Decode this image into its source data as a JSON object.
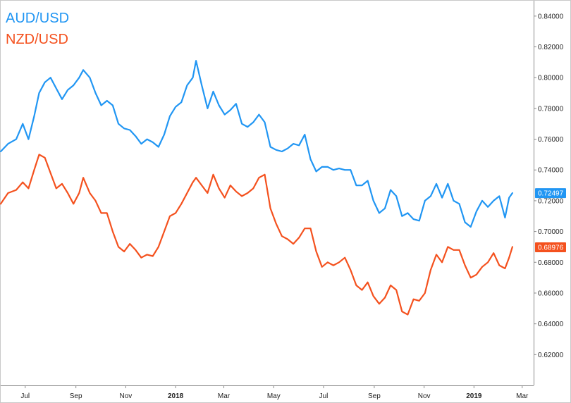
{
  "chart_data": {
    "type": "line",
    "x_range": [
      "2017-06-01",
      "2019-03-15"
    ],
    "ylim": [
      0.6,
      0.85
    ],
    "grid": false,
    "legend_position": "top-left",
    "y_ticks": [
      "0.62000",
      "0.64000",
      "0.66000",
      "0.68000",
      "0.70000",
      "0.72000",
      "0.74000",
      "0.76000",
      "0.78000",
      "0.80000",
      "0.82000",
      "0.84000"
    ],
    "x_ticks": [
      {
        "date": "2017-07-01",
        "label": "Jul",
        "bold": false
      },
      {
        "date": "2017-09-01",
        "label": "Sep",
        "bold": false
      },
      {
        "date": "2017-11-01",
        "label": "Nov",
        "bold": false
      },
      {
        "date": "2018-01-01",
        "label": "2018",
        "bold": true
      },
      {
        "date": "2018-03-01",
        "label": "Mar",
        "bold": false
      },
      {
        "date": "2018-05-01",
        "label": "May",
        "bold": false
      },
      {
        "date": "2018-07-01",
        "label": "Jul",
        "bold": false
      },
      {
        "date": "2018-09-01",
        "label": "Sep",
        "bold": false
      },
      {
        "date": "2018-11-01",
        "label": "Nov",
        "bold": false
      },
      {
        "date": "2019-01-01",
        "label": "2019",
        "bold": true
      },
      {
        "date": "2019-03-01",
        "label": "Mar",
        "bold": false
      }
    ],
    "series": [
      {
        "name": "AUD/USD",
        "color": "#2196f3",
        "last_value": "0.72497",
        "points": [
          [
            "2017-06-01",
            0.752
          ],
          [
            "2017-06-10",
            0.757
          ],
          [
            "2017-06-20",
            0.76
          ],
          [
            "2017-06-28",
            0.77
          ],
          [
            "2017-07-05",
            0.76
          ],
          [
            "2017-07-12",
            0.775
          ],
          [
            "2017-07-18",
            0.79
          ],
          [
            "2017-07-25",
            0.797
          ],
          [
            "2017-08-01",
            0.8
          ],
          [
            "2017-08-08",
            0.793
          ],
          [
            "2017-08-15",
            0.786
          ],
          [
            "2017-08-22",
            0.792
          ],
          [
            "2017-08-29",
            0.795
          ],
          [
            "2017-09-05",
            0.8
          ],
          [
            "2017-09-10",
            0.805
          ],
          [
            "2017-09-18",
            0.8
          ],
          [
            "2017-09-25",
            0.79
          ],
          [
            "2017-10-02",
            0.782
          ],
          [
            "2017-10-09",
            0.785
          ],
          [
            "2017-10-16",
            0.782
          ],
          [
            "2017-10-23",
            0.77
          ],
          [
            "2017-10-30",
            0.767
          ],
          [
            "2017-11-06",
            0.766
          ],
          [
            "2017-11-13",
            0.762
          ],
          [
            "2017-11-20",
            0.757
          ],
          [
            "2017-11-27",
            0.76
          ],
          [
            "2017-12-04",
            0.758
          ],
          [
            "2017-12-11",
            0.755
          ],
          [
            "2017-12-18",
            0.763
          ],
          [
            "2017-12-25",
            0.775
          ],
          [
            "2018-01-01",
            0.781
          ],
          [
            "2018-01-08",
            0.784
          ],
          [
            "2018-01-15",
            0.795
          ],
          [
            "2018-01-22",
            0.8
          ],
          [
            "2018-01-26",
            0.811
          ],
          [
            "2018-02-02",
            0.795
          ],
          [
            "2018-02-09",
            0.78
          ],
          [
            "2018-02-16",
            0.791
          ],
          [
            "2018-02-23",
            0.782
          ],
          [
            "2018-03-02",
            0.776
          ],
          [
            "2018-03-09",
            0.779
          ],
          [
            "2018-03-16",
            0.783
          ],
          [
            "2018-03-23",
            0.77
          ],
          [
            "2018-03-30",
            0.768
          ],
          [
            "2018-04-06",
            0.771
          ],
          [
            "2018-04-13",
            0.776
          ],
          [
            "2018-04-20",
            0.771
          ],
          [
            "2018-04-27",
            0.755
          ],
          [
            "2018-05-04",
            0.753
          ],
          [
            "2018-05-11",
            0.752
          ],
          [
            "2018-05-18",
            0.754
          ],
          [
            "2018-05-25",
            0.757
          ],
          [
            "2018-06-01",
            0.756
          ],
          [
            "2018-06-08",
            0.763
          ],
          [
            "2018-06-15",
            0.747
          ],
          [
            "2018-06-22",
            0.739
          ],
          [
            "2018-06-29",
            0.742
          ],
          [
            "2018-07-06",
            0.742
          ],
          [
            "2018-07-13",
            0.74
          ],
          [
            "2018-07-20",
            0.741
          ],
          [
            "2018-07-27",
            0.74
          ],
          [
            "2018-08-03",
            0.74
          ],
          [
            "2018-08-10",
            0.73
          ],
          [
            "2018-08-17",
            0.73
          ],
          [
            "2018-08-24",
            0.733
          ],
          [
            "2018-08-31",
            0.72
          ],
          [
            "2018-09-07",
            0.712
          ],
          [
            "2018-09-14",
            0.715
          ],
          [
            "2018-09-21",
            0.727
          ],
          [
            "2018-09-28",
            0.723
          ],
          [
            "2018-10-05",
            0.71
          ],
          [
            "2018-10-12",
            0.712
          ],
          [
            "2018-10-19",
            0.708
          ],
          [
            "2018-10-26",
            0.707
          ],
          [
            "2018-11-02",
            0.72
          ],
          [
            "2018-11-09",
            0.723
          ],
          [
            "2018-11-16",
            0.731
          ],
          [
            "2018-11-23",
            0.722
          ],
          [
            "2018-11-30",
            0.731
          ],
          [
            "2018-12-07",
            0.72
          ],
          [
            "2018-12-14",
            0.718
          ],
          [
            "2018-12-21",
            0.706
          ],
          [
            "2018-12-28",
            0.703
          ],
          [
            "2019-01-04",
            0.713
          ],
          [
            "2019-01-11",
            0.72
          ],
          [
            "2019-01-18",
            0.716
          ],
          [
            "2019-01-25",
            0.72
          ],
          [
            "2019-02-01",
            0.723
          ],
          [
            "2019-02-08",
            0.709
          ],
          [
            "2019-02-13",
            0.722
          ],
          [
            "2019-02-17",
            0.725
          ]
        ]
      },
      {
        "name": "NZD/USD",
        "color": "#f4511e",
        "last_value": "0.68976",
        "points": [
          [
            "2017-06-01",
            0.718
          ],
          [
            "2017-06-10",
            0.725
          ],
          [
            "2017-06-20",
            0.727
          ],
          [
            "2017-06-28",
            0.732
          ],
          [
            "2017-07-05",
            0.728
          ],
          [
            "2017-07-12",
            0.74
          ],
          [
            "2017-07-18",
            0.75
          ],
          [
            "2017-07-25",
            0.748
          ],
          [
            "2017-08-01",
            0.738
          ],
          [
            "2017-08-08",
            0.728
          ],
          [
            "2017-08-15",
            0.731
          ],
          [
            "2017-08-22",
            0.725
          ],
          [
            "2017-08-29",
            0.718
          ],
          [
            "2017-09-05",
            0.725
          ],
          [
            "2017-09-10",
            0.735
          ],
          [
            "2017-09-18",
            0.725
          ],
          [
            "2017-09-25",
            0.72
          ],
          [
            "2017-10-02",
            0.712
          ],
          [
            "2017-10-09",
            0.712
          ],
          [
            "2017-10-16",
            0.7
          ],
          [
            "2017-10-23",
            0.69
          ],
          [
            "2017-10-30",
            0.687
          ],
          [
            "2017-11-06",
            0.692
          ],
          [
            "2017-11-13",
            0.688
          ],
          [
            "2017-11-20",
            0.683
          ],
          [
            "2017-11-27",
            0.685
          ],
          [
            "2017-12-04",
            0.684
          ],
          [
            "2017-12-11",
            0.69
          ],
          [
            "2017-12-18",
            0.7
          ],
          [
            "2017-12-25",
            0.71
          ],
          [
            "2018-01-01",
            0.712
          ],
          [
            "2018-01-08",
            0.718
          ],
          [
            "2018-01-15",
            0.725
          ],
          [
            "2018-01-22",
            0.732
          ],
          [
            "2018-01-26",
            0.735
          ],
          [
            "2018-02-02",
            0.73
          ],
          [
            "2018-02-09",
            0.725
          ],
          [
            "2018-02-16",
            0.737
          ],
          [
            "2018-02-23",
            0.728
          ],
          [
            "2018-03-02",
            0.722
          ],
          [
            "2018-03-09",
            0.73
          ],
          [
            "2018-03-16",
            0.726
          ],
          [
            "2018-03-23",
            0.723
          ],
          [
            "2018-03-30",
            0.725
          ],
          [
            "2018-04-06",
            0.728
          ],
          [
            "2018-04-13",
            0.735
          ],
          [
            "2018-04-20",
            0.737
          ],
          [
            "2018-04-27",
            0.715
          ],
          [
            "2018-05-04",
            0.705
          ],
          [
            "2018-05-11",
            0.697
          ],
          [
            "2018-05-18",
            0.695
          ],
          [
            "2018-05-25",
            0.692
          ],
          [
            "2018-06-01",
            0.696
          ],
          [
            "2018-06-08",
            0.702
          ],
          [
            "2018-06-15",
            0.702
          ],
          [
            "2018-06-22",
            0.687
          ],
          [
            "2018-06-29",
            0.677
          ],
          [
            "2018-07-06",
            0.68
          ],
          [
            "2018-07-13",
            0.678
          ],
          [
            "2018-07-20",
            0.68
          ],
          [
            "2018-07-27",
            0.683
          ],
          [
            "2018-08-03",
            0.675
          ],
          [
            "2018-08-10",
            0.665
          ],
          [
            "2018-08-17",
            0.662
          ],
          [
            "2018-08-24",
            0.667
          ],
          [
            "2018-08-31",
            0.658
          ],
          [
            "2018-09-07",
            0.653
          ],
          [
            "2018-09-14",
            0.657
          ],
          [
            "2018-09-21",
            0.665
          ],
          [
            "2018-09-28",
            0.662
          ],
          [
            "2018-10-05",
            0.648
          ],
          [
            "2018-10-12",
            0.646
          ],
          [
            "2018-10-19",
            0.656
          ],
          [
            "2018-10-26",
            0.655
          ],
          [
            "2018-11-02",
            0.66
          ],
          [
            "2018-11-09",
            0.675
          ],
          [
            "2018-11-16",
            0.685
          ],
          [
            "2018-11-23",
            0.68
          ],
          [
            "2018-11-30",
            0.69
          ],
          [
            "2018-12-07",
            0.688
          ],
          [
            "2018-12-14",
            0.688
          ],
          [
            "2018-12-21",
            0.678
          ],
          [
            "2018-12-28",
            0.67
          ],
          [
            "2019-01-04",
            0.672
          ],
          [
            "2019-01-11",
            0.677
          ],
          [
            "2019-01-18",
            0.68
          ],
          [
            "2019-01-25",
            0.686
          ],
          [
            "2019-02-01",
            0.678
          ],
          [
            "2019-02-08",
            0.676
          ],
          [
            "2019-02-13",
            0.683
          ],
          [
            "2019-02-17",
            0.69
          ]
        ]
      }
    ]
  }
}
